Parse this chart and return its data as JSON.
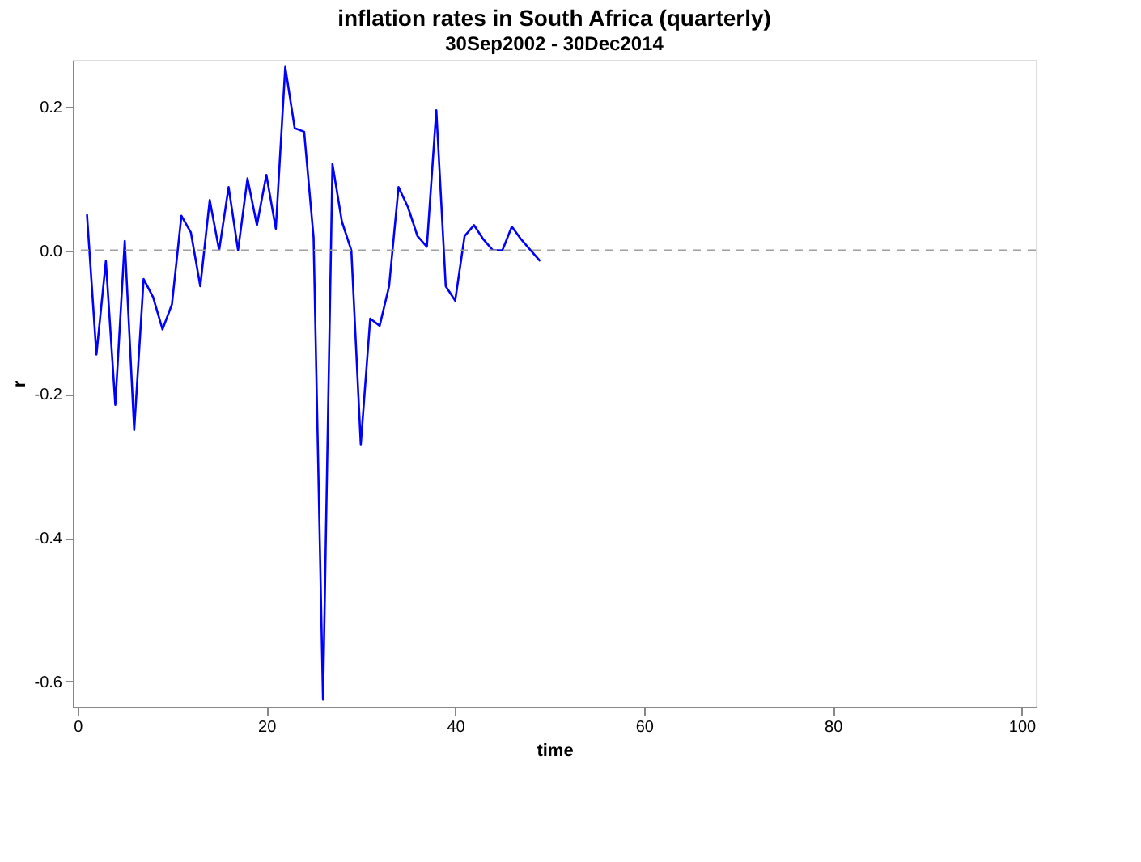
{
  "chart_data": {
    "type": "line",
    "title": "inflation rates in South Africa (quarterly)",
    "subtitle": "30Sep2002 - 30Dec2014",
    "xlabel": "time",
    "ylabel": "r",
    "x": [
      1,
      2,
      3,
      4,
      5,
      6,
      7,
      8,
      9,
      10,
      11,
      12,
      13,
      14,
      15,
      16,
      17,
      18,
      19,
      20,
      21,
      22,
      23,
      24,
      25,
      26,
      27,
      28,
      29,
      30,
      31,
      32,
      33,
      34,
      35,
      36,
      37,
      38,
      39,
      40,
      41,
      42,
      43,
      44,
      45,
      46,
      47,
      48,
      49
    ],
    "series": [
      {
        "color": "#0000ff",
        "values": [
          0.05,
          -0.145,
          -0.015,
          -0.215,
          0.013,
          -0.25,
          -0.04,
          -0.065,
          -0.11,
          -0.075,
          0.048,
          0.025,
          -0.05,
          0.07,
          0.0,
          0.088,
          0.0,
          0.1,
          0.035,
          0.105,
          0.03,
          0.255,
          0.17,
          0.165,
          0.018,
          -0.625,
          0.12,
          0.04,
          0.0,
          -0.27,
          -0.095,
          -0.105,
          -0.05,
          0.088,
          0.06,
          0.02,
          0.005,
          0.195,
          -0.05,
          -0.07,
          0.02,
          0.035,
          0.015,
          0.0,
          0.0,
          0.033,
          0.015,
          0.0,
          -0.015
        ]
      }
    ],
    "xlim": [
      -0.5,
      101.5
    ],
    "ylim": [
      -0.635,
      0.265
    ],
    "xticks": [
      0,
      20,
      40,
      60,
      80,
      100
    ],
    "yticks": [
      {
        "value": -0.6,
        "label": "-0.6"
      },
      {
        "value": -0.4,
        "label": "-0.4"
      },
      {
        "value": -0.2,
        "label": "-0.2"
      },
      {
        "value": 0,
        "label": "0.0"
      },
      {
        "value": 0.2,
        "label": "0.2"
      }
    ],
    "ref_lines": [
      {
        "axis": "y",
        "value": 0,
        "color": "#a0a0a0",
        "line_style": "dashed"
      }
    ],
    "grid": false,
    "marker": "none",
    "line_style": "solid"
  }
}
